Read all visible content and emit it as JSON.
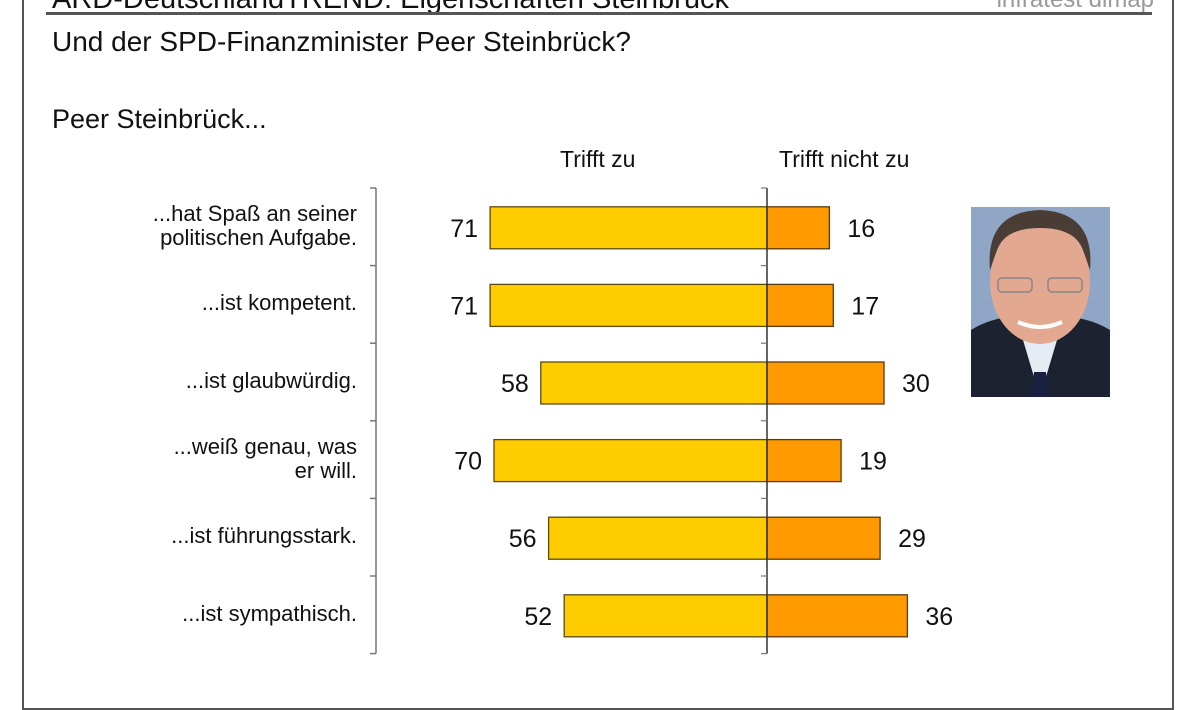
{
  "header": {
    "title": "ARD-DeutschlandTREND: Eigenschaften Steinbrück",
    "source": "infratest dimap",
    "question": "Und der SPD-Finanzminister Peer Steinbrück?",
    "subject": "Peer Steinbrück..."
  },
  "photo": {
    "description_icon": "portrait-photo"
  },
  "chart_data": {
    "type": "bar",
    "orientation": "horizontal-diverging",
    "categories": [
      "...hat Spaß an seiner politischen Aufgabe.",
      "...ist kompetent.",
      "...ist glaubwürdig.",
      "...weiß genau, was er will.",
      "...ist führungsstark.",
      "...ist sympathisch."
    ],
    "category_lines": [
      [
        "...hat Spaß an seiner",
        "politischen Aufgabe."
      ],
      [
        "...ist kompetent."
      ],
      [
        "...ist glaubwürdig."
      ],
      [
        "...weiß genau, was",
        "er will."
      ],
      [
        "...ist führungsstark."
      ],
      [
        "...ist sympathisch."
      ]
    ],
    "series": [
      {
        "name": "Trifft zu",
        "values": [
          71,
          71,
          58,
          70,
          56,
          52
        ],
        "color": "#FFCC00"
      },
      {
        "name": "Trifft nicht zu",
        "values": [
          16,
          17,
          30,
          19,
          29,
          36
        ],
        "color": "#FF9900"
      }
    ],
    "unit": "%",
    "grid": false
  }
}
